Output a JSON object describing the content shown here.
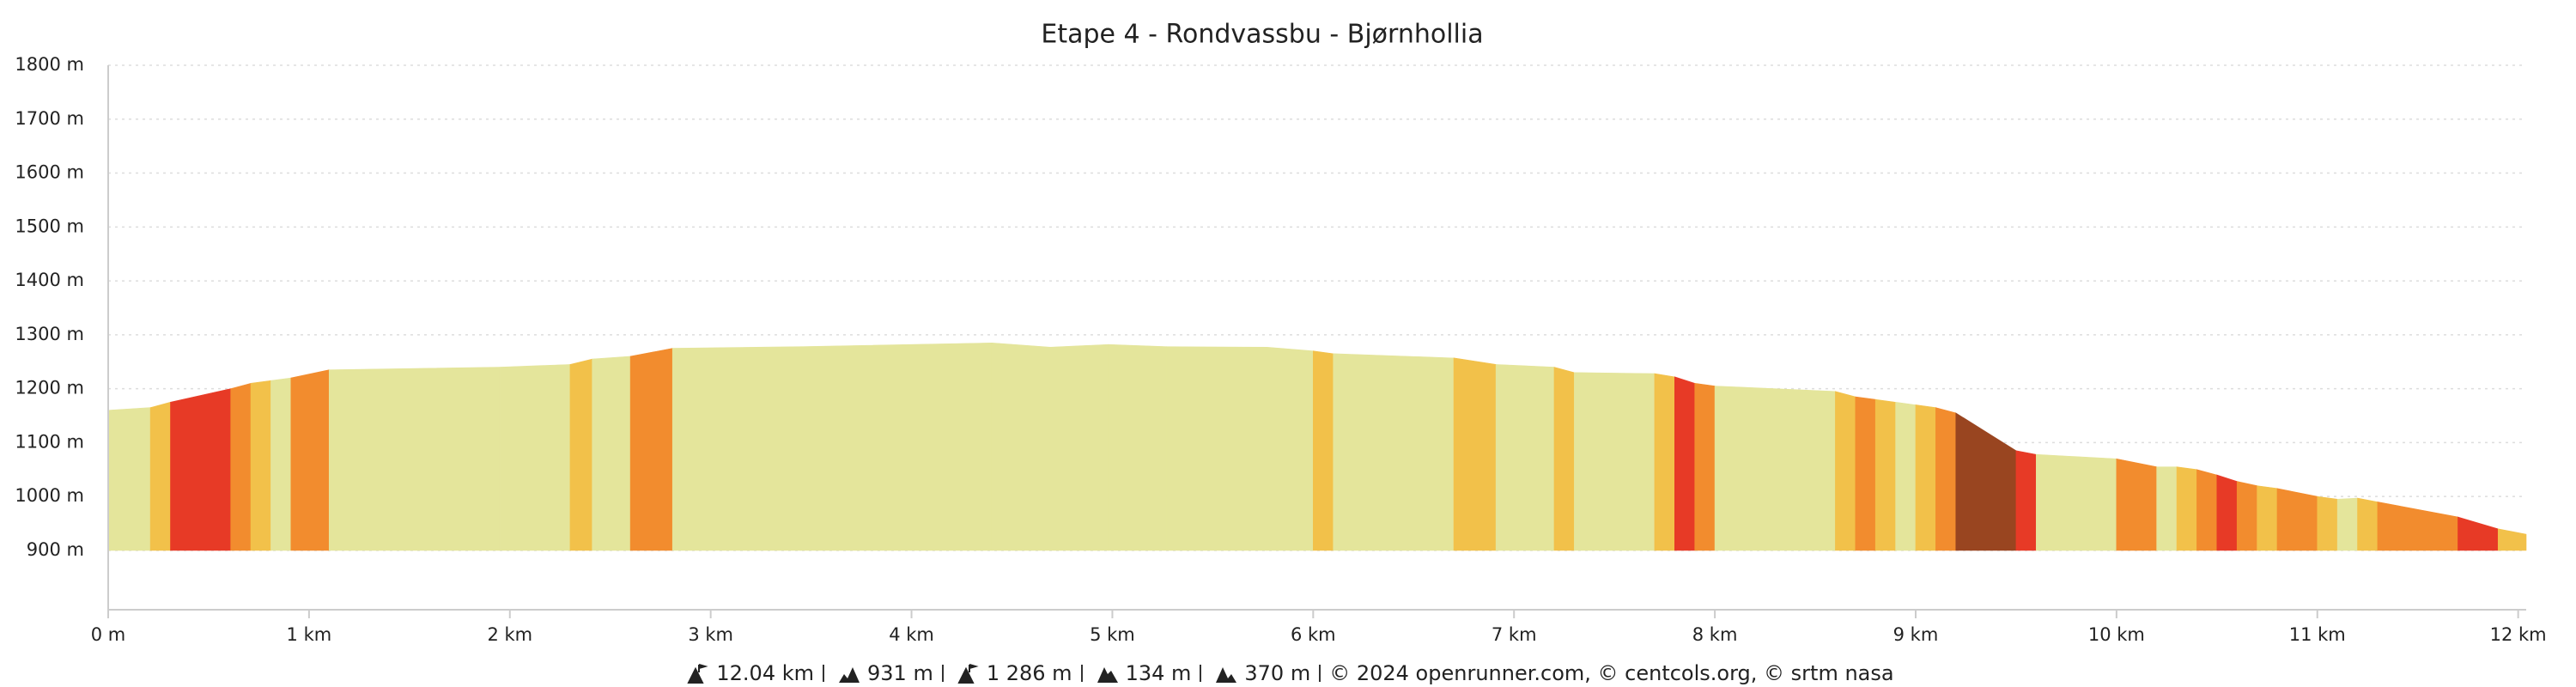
{
  "chart_data": {
    "type": "area",
    "title": "Etape 4 - Rondvassbu - Bjørnhollia",
    "x": [
      0,
      0.21,
      0.31,
      0.61,
      0.71,
      0.81,
      0.91,
      1.1,
      1.95,
      2.3,
      2.41,
      2.6,
      2.81,
      3.45,
      4.4,
      4.69,
      4.98,
      5.27,
      5.77,
      6.0,
      6.1,
      6.7,
      6.91,
      7.2,
      7.3,
      7.7,
      7.8,
      7.9,
      8.0,
      8.6,
      8.7,
      8.8,
      8.9,
      9.0,
      9.1,
      9.2,
      9.5,
      9.6,
      10.0,
      10.2,
      10.3,
      10.4,
      10.5,
      10.6,
      10.7,
      10.8,
      11.0,
      11.1,
      11.2,
      11.3,
      11.7,
      11.9,
      12.04
    ],
    "values": [
      1160,
      1165,
      1175,
      1200,
      1210,
      1215,
      1220,
      1235,
      1240,
      1245,
      1255,
      1260,
      1275,
      1278,
      1285,
      1277,
      1282,
      1278,
      1277,
      1270,
      1265,
      1257,
      1245,
      1240,
      1230,
      1228,
      1222,
      1210,
      1205,
      1195,
      1185,
      1180,
      1175,
      1170,
      1165,
      1155,
      1085,
      1078,
      1070,
      1055,
      1055,
      1050,
      1040,
      1028,
      1020,
      1015,
      1000,
      995,
      997,
      990,
      962,
      940,
      930
    ],
    "colors": [
      "#e4e59b",
      "#f2c14a",
      "#e73a26",
      "#f28c2e",
      "#f2c14a",
      "#e4e59b",
      "#f28c2e",
      "#e4e59b",
      "#e4e59b",
      "#f2c14a",
      "#e4e59b",
      "#f28c2e",
      "#e4e59b",
      "#e4e59b",
      "#e4e59b",
      "#e4e59b",
      "#e4e59b",
      "#e4e59b",
      "#e4e59b",
      "#f2c14a",
      "#e4e59b",
      "#f2c14a",
      "#e4e59b",
      "#f2c14a",
      "#e4e59b",
      "#f2c14a",
      "#e73a26",
      "#f28c2e",
      "#e4e59b",
      "#f2c14a",
      "#f28c2e",
      "#f2c14a",
      "#e4e59b",
      "#f2c14a",
      "#f28c2e",
      "#994520",
      "#e73a26",
      "#e4e59b",
      "#f28c2e",
      "#e4e59b",
      "#f2c14a",
      "#f28c2e",
      "#e73a26",
      "#f28c2e",
      "#f2c14a",
      "#f28c2e",
      "#f2c14a",
      "#e4e59b",
      "#f2c14a",
      "#f28c2e",
      "#e73a26",
      "#f2c14a"
    ],
    "xlim": [
      0,
      12.04
    ],
    "xticks": [
      {
        "value": 0,
        "label": "0 m"
      },
      {
        "value": 1,
        "label": "1 km"
      },
      {
        "value": 2,
        "label": "2 km"
      },
      {
        "value": 3,
        "label": "3 km"
      },
      {
        "value": 4,
        "label": "4 km"
      },
      {
        "value": 5,
        "label": "5 km"
      },
      {
        "value": 6,
        "label": "6 km"
      },
      {
        "value": 7,
        "label": "7 km"
      },
      {
        "value": 8,
        "label": "8 km"
      },
      {
        "value": 9,
        "label": "9 km"
      },
      {
        "value": 10,
        "label": "10 km"
      },
      {
        "value": 11,
        "label": "11 km"
      },
      {
        "value": 12,
        "label": "12 km"
      }
    ],
    "ylim": [
      790,
      1800
    ],
    "yticks": [
      {
        "value": 900,
        "label": "900 m"
      },
      {
        "value": 1000,
        "label": "1000 m"
      },
      {
        "value": 1100,
        "label": "1100 m"
      },
      {
        "value": 1200,
        "label": "1200 m"
      },
      {
        "value": 1300,
        "label": "1300 m"
      },
      {
        "value": 1400,
        "label": "1400 m"
      },
      {
        "value": 1500,
        "label": "1500 m"
      },
      {
        "value": 1600,
        "label": "1600 m"
      },
      {
        "value": 1700,
        "label": "1700 m"
      },
      {
        "value": 1800,
        "label": "1800 m"
      }
    ],
    "grid": true
  },
  "footer": {
    "stats": [
      "12.04 km",
      "931 m",
      "1 286 m",
      "134 m",
      "370 m"
    ],
    "credits": "© 2024 openrunner.com, © centcols.org, © srtm nasa"
  }
}
